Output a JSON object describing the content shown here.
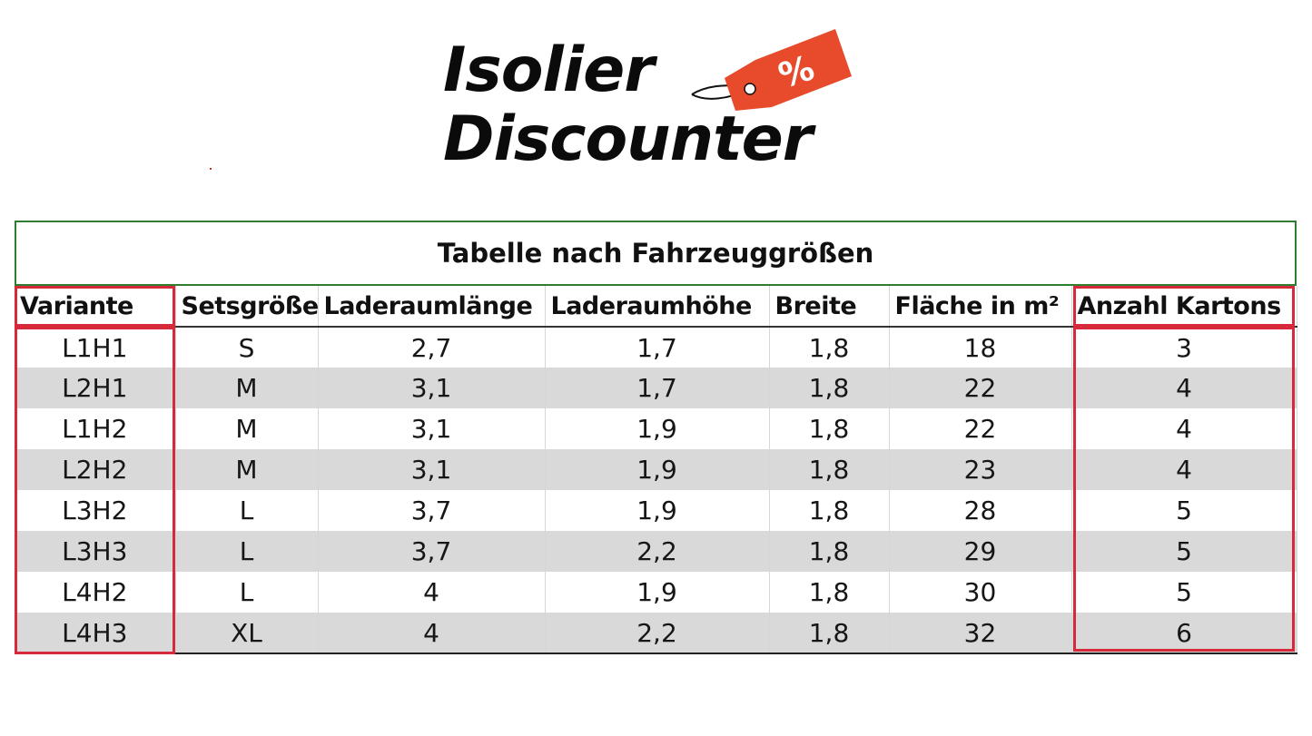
{
  "logo": {
    "line1": "Isolier",
    "line2": "Discounter",
    "tag_symbol": "%",
    "tag_color": "#e84a2c"
  },
  "table": {
    "title": "Tabelle nach Fahrzeuggrößen",
    "headers": [
      "Variante",
      "Setsgröße",
      "Laderaumlänge",
      "Laderaumhöhe",
      "Breite",
      "Fläche in m²",
      "Anzahl Kartons"
    ],
    "rows": [
      [
        "L1H1",
        "S",
        "2,7",
        "1,7",
        "1,8",
        "18",
        "3"
      ],
      [
        "L2H1",
        "M",
        "3,1",
        "1,7",
        "1,8",
        "22",
        "4"
      ],
      [
        "L1H2",
        "M",
        "3,1",
        "1,9",
        "1,8",
        "22",
        "4"
      ],
      [
        "L2H2",
        "M",
        "3,1",
        "1,9",
        "1,8",
        "23",
        "4"
      ],
      [
        "L3H2",
        "L",
        "3,7",
        "1,9",
        "1,8",
        "28",
        "5"
      ],
      [
        "L3H3",
        "L",
        "3,7",
        "2,2",
        "1,8",
        "29",
        "5"
      ],
      [
        "L4H2",
        "L",
        "4",
        "1,9",
        "1,8",
        "30",
        "5"
      ],
      [
        "L4H3",
        "XL",
        "4",
        "2,2",
        "1,8",
        "32",
        "6"
      ]
    ],
    "highlight_color": "#d62a3a",
    "title_border_color": "#2e7d32",
    "stripe_color": "#d9d9d9"
  }
}
